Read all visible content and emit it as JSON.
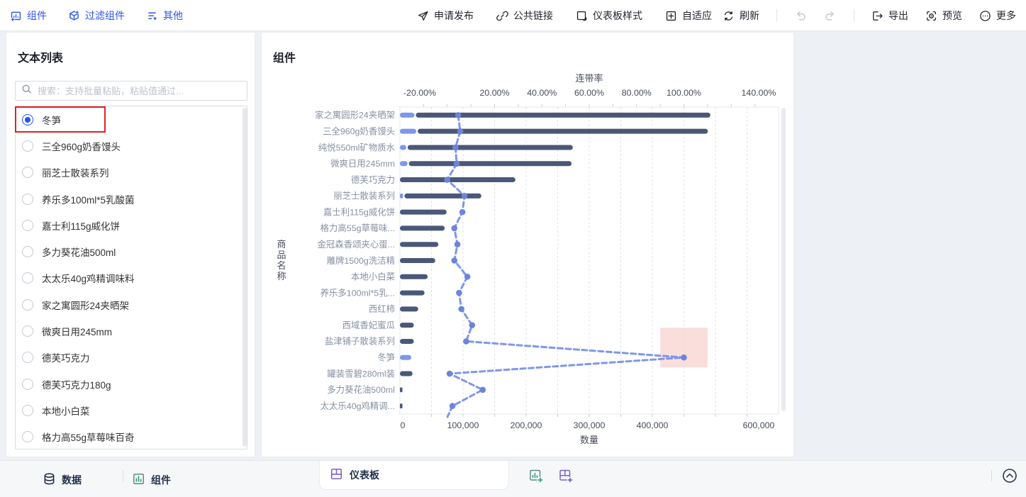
{
  "toolbar": {
    "left": [
      {
        "label": "组件"
      },
      {
        "label": "过滤组件"
      },
      {
        "label": "其他"
      }
    ],
    "center": [
      {
        "label": "申请发布"
      },
      {
        "label": "公共链接"
      },
      {
        "label": "仪表板样式"
      },
      {
        "label": "自适应"
      }
    ],
    "right": [
      {
        "label": "刷新"
      },
      {
        "label": "导出"
      },
      {
        "label": "预览"
      },
      {
        "label": "更多"
      }
    ]
  },
  "sidebar": {
    "title": "文本列表",
    "search_placeholder": "搜索：支持批量粘贴，粘贴值通过...",
    "items": [
      {
        "label": "冬笋",
        "selected": true,
        "highlighted": true
      },
      {
        "label": "三全960g奶香馒头",
        "selected": false
      },
      {
        "label": "丽芝士散装系列",
        "selected": false
      },
      {
        "label": "养乐多100ml*5乳酸菌",
        "selected": false
      },
      {
        "label": "嘉士利115g威化饼",
        "selected": false
      },
      {
        "label": "多力葵花油500ml",
        "selected": false
      },
      {
        "label": "太太乐40g鸡精调味料",
        "selected": false
      },
      {
        "label": "家之寓圆形24夹晒架",
        "selected": false
      },
      {
        "label": "微爽日用245mm",
        "selected": false
      },
      {
        "label": "德芙巧克力",
        "selected": false
      },
      {
        "label": "德芙巧克力180g",
        "selected": false
      },
      {
        "label": "本地小白菜",
        "selected": false
      },
      {
        "label": "格力高55g草莓味百奇",
        "selected": false
      }
    ]
  },
  "panel": {
    "title": "组件"
  },
  "chart_data": {
    "type": "bar+line",
    "orientation": "horizontal",
    "categories": [
      "家之寓圆形24夹晒架",
      "三全960g奶香馒头",
      "纯悦550ml矿物质水",
      "微爽日用245mm",
      "德芙巧克力",
      "丽芝士散装系列",
      "嘉士利115g威化饼",
      "格力高55g草莓味...",
      "金冠森香颂夹心蛋...",
      "雕牌1500g洗洁精",
      "本地小白菜",
      "养乐多100ml*5乳...",
      "西红柿",
      "西域香妃蜜瓜",
      "盐津铺子散装系列",
      "冬笋",
      "罐装雪碧280ml装",
      "多力葵花油500ml",
      "太太乐40g鸡精调..."
    ],
    "series": [
      {
        "id": "bar_light",
        "type": "bar",
        "axis": "bottom",
        "color": "#7E97E8",
        "values": [
          23000,
          26000,
          10000,
          12000,
          0,
          5000,
          0,
          0,
          0,
          0,
          0,
          0,
          0,
          0,
          0,
          18000,
          0,
          0,
          0
        ]
      },
      {
        "id": "bar_dark",
        "type": "bar",
        "axis": "bottom",
        "color": "#4A5878",
        "values": [
          469000,
          462000,
          264000,
          260000,
          183000,
          124000,
          74000,
          71000,
          61000,
          56000,
          44000,
          39000,
          29000,
          22000,
          22000,
          0,
          20000,
          4000,
          4000
        ]
      },
      {
        "id": "line",
        "type": "line",
        "axis": "top",
        "color": "#7E97E8",
        "point_color": "#6D84DB",
        "values": [
          4.6,
          5.5,
          3.5,
          4,
          0,
          7.3,
          6.4,
          3,
          4.3,
          3,
          8.5,
          5,
          6,
          10.5,
          8,
          100,
          1,
          15,
          2.2
        ]
      }
    ],
    "top_axis": {
      "title": "连带率",
      "range": [
        -20,
        140
      ],
      "tick_step": 10,
      "ticks": [
        {
          "v": -20,
          "label": "-20.00%"
        },
        {
          "v": 20,
          "label": "20.00%"
        },
        {
          "v": 40,
          "label": "40.00%"
        },
        {
          "v": 60,
          "label": "60.00%"
        },
        {
          "v": 80,
          "label": "80.00%"
        },
        {
          "v": 100,
          "label": "100.00%"
        },
        {
          "v": 140,
          "label": "140.00%"
        }
      ]
    },
    "bottom_axis": {
      "title": "数量",
      "range": [
        0,
        600000
      ],
      "gridline_step": 50000,
      "ticks": [
        {
          "v": 0,
          "label": "0"
        },
        {
          "v": 100000,
          "label": "100,000"
        },
        {
          "v": 200000,
          "label": "200,000"
        },
        {
          "v": 300000,
          "label": "300,000"
        },
        {
          "v": 400000,
          "label": "400,000"
        },
        {
          "v": 600000,
          "label": "600,000"
        }
      ]
    },
    "y_axis_title": "商品名称",
    "highlight_region": {
      "category": "冬笋",
      "axis": "top",
      "range": [
        90,
        110
      ],
      "color": "#F8D8D6"
    },
    "legend_position": "none",
    "grid": true
  },
  "bottom_bar": {
    "data_label": "数据",
    "component_label": "组件",
    "dashboard_tab": "仪表板"
  },
  "colors": {
    "accent_blue": "#2F54EB",
    "bar_dark": "#4A5878",
    "bar_light": "#7E97E8",
    "line": "#7E97E8",
    "point": "#6D84DB",
    "highlight_pink": "#F8D8D6",
    "selection_red": "#E02222",
    "tab_purple": "#7B61C9",
    "icon_green": "#2FA084",
    "gridline": "#DFE2E7"
  }
}
